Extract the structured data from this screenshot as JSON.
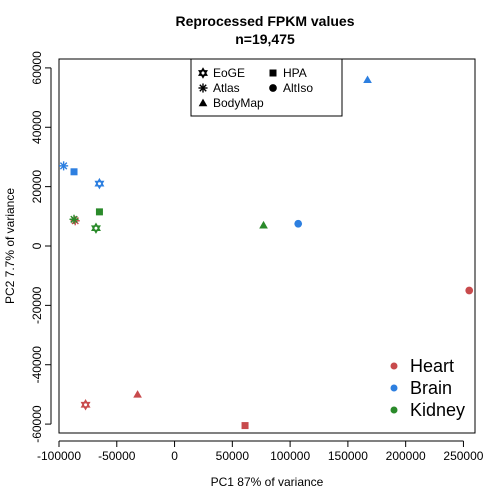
{
  "chart_data": {
    "type": "scatter",
    "title_line1": "Reprocessed FPKM values",
    "title_line2": "n=19,475",
    "xlabel": "PC1 87% of variance",
    "ylabel": "PC2 7.7% of variance",
    "xlim": [
      -100000,
      260000
    ],
    "ylim": [
      -63000,
      63000
    ],
    "xticks": [
      -100000,
      -50000,
      0,
      50000,
      100000,
      150000,
      200000,
      250000
    ],
    "xtick_labels": [
      "-100000",
      "-50000",
      "0",
      "50000",
      "100000",
      "150000",
      "200000",
      "250000"
    ],
    "yticks": [
      -60000,
      -40000,
      -20000,
      0,
      20000,
      40000,
      60000
    ],
    "ytick_labels": [
      "-60000",
      "-40000",
      "-20000",
      "0",
      "20000",
      "40000",
      "60000"
    ],
    "shape_legend": {
      "position": "top-center",
      "entries": [
        {
          "label": "EoGE",
          "shape": "star-of-david"
        },
        {
          "label": "HPA",
          "shape": "square"
        },
        {
          "label": "Atlas",
          "shape": "asterisk"
        },
        {
          "label": "AltIso",
          "shape": "circle"
        },
        {
          "label": "BodyMap",
          "shape": "triangle"
        }
      ]
    },
    "color_legend": {
      "position": "bottom-right",
      "entries": [
        {
          "label": "Heart",
          "color": "#c84a4c"
        },
        {
          "label": "Brain",
          "color": "#2d7fe0"
        },
        {
          "label": "Kidney",
          "color": "#2a8a2a"
        }
      ]
    },
    "points": [
      {
        "tissue": "Heart",
        "source": "EoGE",
        "x": -77000,
        "y": -53500
      },
      {
        "tissue": "Heart",
        "source": "Atlas",
        "x": -86000,
        "y": 8500
      },
      {
        "tissue": "Heart",
        "source": "BodyMap",
        "x": -32000,
        "y": -50000
      },
      {
        "tissue": "Heart",
        "source": "HPA",
        "x": 61000,
        "y": -60500
      },
      {
        "tissue": "Heart",
        "source": "AltIso",
        "x": 255000,
        "y": -15000
      },
      {
        "tissue": "Brain",
        "source": "EoGE",
        "x": -65000,
        "y": 21000
      },
      {
        "tissue": "Brain",
        "source": "Atlas",
        "x": -96000,
        "y": 27000
      },
      {
        "tissue": "Brain",
        "source": "HPA",
        "x": -87000,
        "y": 25000
      },
      {
        "tissue": "Brain",
        "source": "BodyMap",
        "x": 167000,
        "y": 56000
      },
      {
        "tissue": "Brain",
        "source": "AltIso",
        "x": 107000,
        "y": 7500
      },
      {
        "tissue": "Kidney",
        "source": "EoGE",
        "x": -68000,
        "y": 6000
      },
      {
        "tissue": "Kidney",
        "source": "Atlas",
        "x": -87000,
        "y": 9000
      },
      {
        "tissue": "Kidney",
        "source": "HPA",
        "x": -65000,
        "y": 11500
      },
      {
        "tissue": "Kidney",
        "source": "BodyMap",
        "x": 77000,
        "y": 7000
      }
    ]
  }
}
